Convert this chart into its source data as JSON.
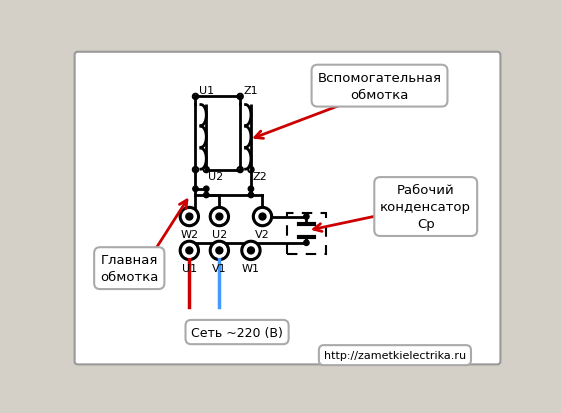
{
  "bg_color": "#d4d0c8",
  "diagram_bg": "#ffffff",
  "label_glavnaya": "Главная\nобмотка",
  "label_vspomogatelnaya": "Вспомогательная\nобмотка",
  "label_rabochiy": "Рабочий\nконденсатор\nСр",
  "label_set": "Сеть ~220 (В)",
  "label_url": "http://zametkielectrika.ru",
  "arrow_color": "#cc0000",
  "wire_red": "#cc0000",
  "wire_blue": "#4499ff"
}
